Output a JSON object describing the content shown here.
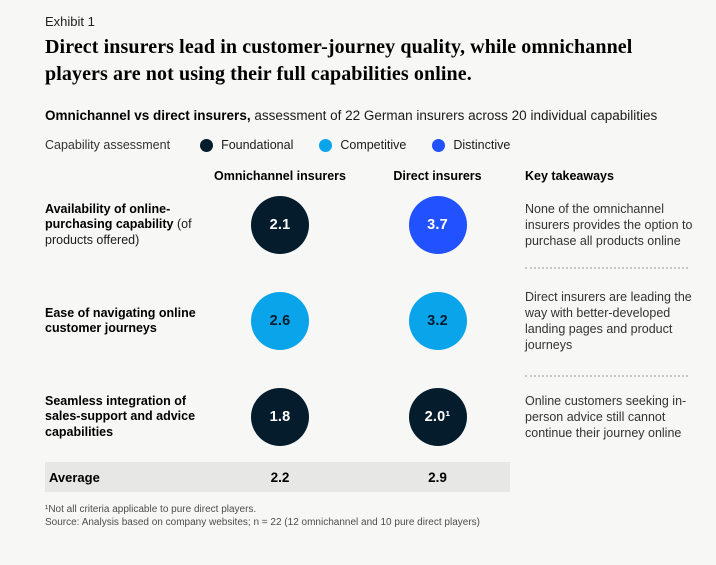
{
  "page": {
    "background": "#F7F7F5"
  },
  "header": {
    "exhibit_label": "Exhibit 1",
    "title": "Direct insurers lead in customer-journey quality, while omnichannel players are not using their full capabilities online."
  },
  "subtitle": {
    "bold": "Omnichannel vs direct insurers,",
    "rest": " assessment of 22 German insurers across 20 individual capabilities"
  },
  "legend": {
    "label": "Capability assessment",
    "items": [
      {
        "name": "Foundational",
        "color": "#051C2C"
      },
      {
        "name": "Competitive",
        "color": "#09A4EA"
      },
      {
        "name": "Distinctive",
        "color": "#2251FF"
      }
    ]
  },
  "table": {
    "columns": {
      "omnichannel": "Omnichannel insurers",
      "direct": "Direct insurers",
      "takeaways": "Key takeaways"
    },
    "rows": [
      {
        "label_bold": "Availability of online-purchasing capability",
        "label_note": "(of products offered)",
        "omnichannel": {
          "value": "2.1",
          "rating": "Foundational",
          "bg": "#051C2C",
          "fg": "#FFFFFF"
        },
        "direct": {
          "value": "3.7",
          "rating": "Distinctive",
          "bg": "#2251FF",
          "fg": "#FFFFFF"
        },
        "takeaway": "None of the omnichannel insurers provides the option to purchase all products online"
      },
      {
        "label_bold": "Ease of navigating online customer journeys",
        "label_note": "",
        "omnichannel": {
          "value": "2.6",
          "rating": "Competitive",
          "bg": "#09A4EA",
          "fg": "#051C2C"
        },
        "direct": {
          "value": "3.2",
          "rating": "Competitive",
          "bg": "#09A4EA",
          "fg": "#051C2C"
        },
        "takeaway": "Direct insurers are leading the way with better-developed landing pages and product journeys"
      },
      {
        "label_bold": "Seamless integration of sales-support and advice capabilities",
        "label_note": "",
        "omnichannel": {
          "value": "1.8",
          "rating": "Foundational",
          "bg": "#051C2C",
          "fg": "#FFFFFF"
        },
        "direct": {
          "value": "2.0¹",
          "rating": "Foundational",
          "bg": "#051C2C",
          "fg": "#FFFFFF"
        },
        "takeaway": "Online customers seeking in-person advice still cannot continue their journey online"
      }
    ],
    "average": {
      "label": "Average",
      "omnichannel": "2.2",
      "direct": "2.9"
    }
  },
  "footnotes": {
    "note1": "¹Not all criteria applicable to pure direct players.",
    "source": "Source: Analysis based on company websites; n = 22 (12 omnichannel and 10 pure direct players)"
  },
  "chart_data": {
    "type": "table",
    "title": "Omnichannel vs direct insurers, assessment of 22 German insurers across 20 individual capabilities",
    "rating_scale": [
      {
        "label": "Foundational",
        "color": "#051C2C"
      },
      {
        "label": "Competitive",
        "color": "#09A4EA"
      },
      {
        "label": "Distinctive",
        "color": "#2251FF"
      }
    ],
    "categories": [
      "Availability of online-purchasing capability (of products offered)",
      "Ease of navigating online customer journeys",
      "Seamless integration of sales-support and advice capabilities"
    ],
    "series": [
      {
        "name": "Omnichannel insurers",
        "values": [
          2.1,
          2.6,
          1.8
        ],
        "ratings": [
          "Foundational",
          "Competitive",
          "Foundational"
        ],
        "average": 2.2
      },
      {
        "name": "Direct insurers",
        "values": [
          3.7,
          3.2,
          2.0
        ],
        "ratings": [
          "Distinctive",
          "Competitive",
          "Foundational"
        ],
        "average": 2.9
      }
    ],
    "takeaways": [
      "None of the omnichannel insurers provides the option to purchase all products online",
      "Direct insurers are leading the way with better-developed landing pages and product journeys",
      "Online customers seeking in-person advice still cannot continue their journey online"
    ],
    "footnote": "Not all criteria applicable to pure direct players (applies to Direct insurers value 2.0)"
  }
}
